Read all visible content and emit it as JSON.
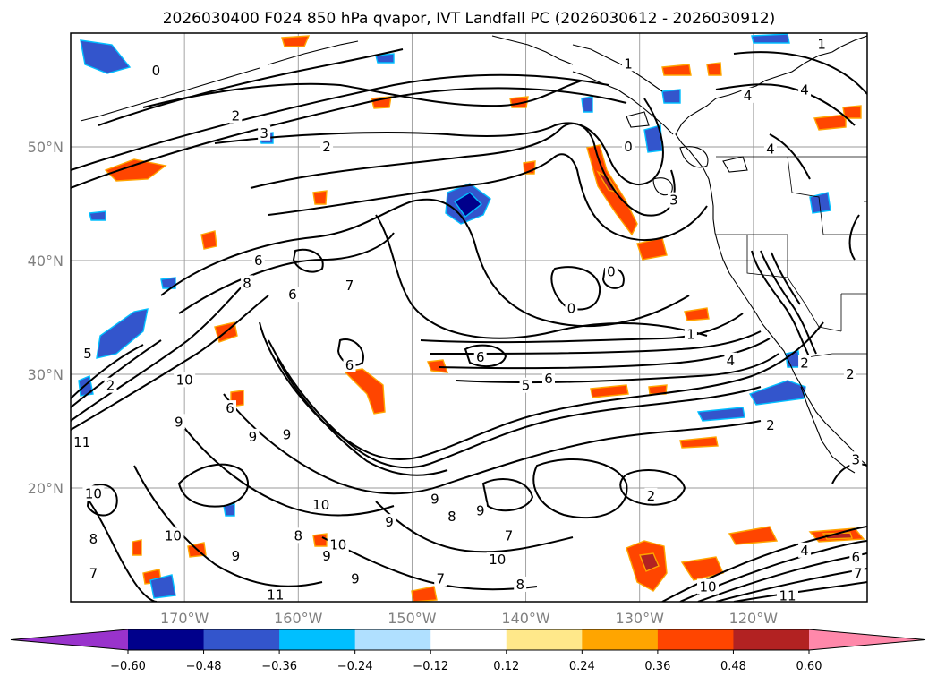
{
  "title": "2026030400 F024 850 hPa qvapor, IVT Landfall PC (2026030612 - 2026030912)",
  "map": {
    "projection": "cylindrical",
    "lon_range": [
      -180,
      -110
    ],
    "lat_range": [
      10,
      60
    ],
    "lat_ticks": [
      {
        "value": 20,
        "label": "20°N"
      },
      {
        "value": 30,
        "label": "30°N"
      },
      {
        "value": 40,
        "label": "40°N"
      },
      {
        "value": 50,
        "label": "50°N"
      }
    ],
    "lon_ticks": [
      {
        "value": -170,
        "label": "170°W"
      },
      {
        "value": -160,
        "label": "160°W"
      },
      {
        "value": -150,
        "label": "150°W"
      },
      {
        "value": -140,
        "label": "140°W"
      },
      {
        "value": -130,
        "label": "130°W"
      },
      {
        "value": -120,
        "label": "120°W"
      }
    ],
    "grid": true
  },
  "colorbar": {
    "orientation": "horizontal",
    "extend": "both",
    "ticks": [
      "−0.60",
      "−0.48",
      "−0.36",
      "−0.24",
      "−0.12",
      "0.12",
      "0.24",
      "0.36",
      "0.48",
      "0.60"
    ],
    "colors": [
      "#9933cc",
      "#00008b",
      "#3355cc",
      "#00bfff",
      "#b0e0ff",
      "#ffffff",
      "#ffe88a",
      "#ffa500",
      "#ff4500",
      "#b22222",
      "#ff88aa"
    ]
  },
  "contour_labels": [
    {
      "text": "0",
      "lon": -172.5,
      "lat": 56.7
    },
    {
      "text": "2",
      "lon": -165.5,
      "lat": 52.7
    },
    {
      "text": "3",
      "lon": -163.0,
      "lat": 51.2
    },
    {
      "text": "2",
      "lon": -157.5,
      "lat": 50.0
    },
    {
      "text": "1",
      "lon": -131.0,
      "lat": 57.3
    },
    {
      "text": "1",
      "lon": -114.0,
      "lat": 59.0
    },
    {
      "text": "0",
      "lon": -131.0,
      "lat": 50.0
    },
    {
      "text": "3",
      "lon": -127.0,
      "lat": 45.3
    },
    {
      "text": "0",
      "lon": -132.5,
      "lat": 39.0
    },
    {
      "text": "0",
      "lon": -136.0,
      "lat": 35.8
    },
    {
      "text": "6",
      "lon": -163.5,
      "lat": 40.0
    },
    {
      "text": "8",
      "lon": -164.5,
      "lat": 38.0
    },
    {
      "text": "6",
      "lon": -160.5,
      "lat": 37.0
    },
    {
      "text": "7",
      "lon": -155.5,
      "lat": 37.8
    },
    {
      "text": "5",
      "lon": -178.5,
      "lat": 31.8
    },
    {
      "text": "2",
      "lon": -176.5,
      "lat": 29.0
    },
    {
      "text": "10",
      "lon": -170.0,
      "lat": 29.5
    },
    {
      "text": "9",
      "lon": -170.5,
      "lat": 25.8
    },
    {
      "text": "6",
      "lon": -166.0,
      "lat": 27.0
    },
    {
      "text": "9",
      "lon": -164.0,
      "lat": 24.5
    },
    {
      "text": "9",
      "lon": -161.0,
      "lat": 24.7
    },
    {
      "text": "6",
      "lon": -155.5,
      "lat": 30.8
    },
    {
      "text": "6",
      "lon": -144.0,
      "lat": 31.5
    },
    {
      "text": "5",
      "lon": -140.0,
      "lat": 29.0
    },
    {
      "text": "6",
      "lon": -138.0,
      "lat": 29.6
    },
    {
      "text": "4",
      "lon": -122.0,
      "lat": 31.2
    },
    {
      "text": "1",
      "lon": -125.5,
      "lat": 33.5
    },
    {
      "text": "2",
      "lon": -115.5,
      "lat": 31.0
    },
    {
      "text": "2",
      "lon": -118.5,
      "lat": 25.5
    },
    {
      "text": "2",
      "lon": -129.0,
      "lat": 19.3
    },
    {
      "text": "11",
      "lon": -179.0,
      "lat": 24.0
    },
    {
      "text": "10",
      "lon": -178.0,
      "lat": 19.5
    },
    {
      "text": "8",
      "lon": -178.0,
      "lat": 15.5
    },
    {
      "text": "7",
      "lon": -178.0,
      "lat": 12.5
    },
    {
      "text": "10",
      "lon": -158.0,
      "lat": 18.5
    },
    {
      "text": "10",
      "lon": -171.0,
      "lat": 15.8
    },
    {
      "text": "9",
      "lon": -152.0,
      "lat": 17.0
    },
    {
      "text": "8",
      "lon": -146.5,
      "lat": 17.5
    },
    {
      "text": "9",
      "lon": -144.0,
      "lat": 18.0
    },
    {
      "text": "9",
      "lon": -148.0,
      "lat": 19.0
    },
    {
      "text": "8",
      "lon": -160.0,
      "lat": 15.8
    },
    {
      "text": "10",
      "lon": -156.5,
      "lat": 15.0
    },
    {
      "text": "9",
      "lon": -157.5,
      "lat": 14.0
    },
    {
      "text": "9",
      "lon": -165.5,
      "lat": 14.0
    },
    {
      "text": "7",
      "lon": -141.5,
      "lat": 15.8
    },
    {
      "text": "10",
      "lon": -142.5,
      "lat": 13.7
    },
    {
      "text": "7",
      "lon": -147.5,
      "lat": 12.0
    },
    {
      "text": "8",
      "lon": -140.5,
      "lat": 11.5
    },
    {
      "text": "9",
      "lon": -155.0,
      "lat": 12.0
    },
    {
      "text": "11",
      "lon": -162.0,
      "lat": 10.6
    },
    {
      "text": "6",
      "lon": -111.0,
      "lat": 13.9
    },
    {
      "text": "4",
      "lon": -115.5,
      "lat": 14.5
    },
    {
      "text": "7",
      "lon": -110.8,
      "lat": 12.5
    },
    {
      "text": "10",
      "lon": -124.0,
      "lat": 11.3
    },
    {
      "text": "11",
      "lon": -117.0,
      "lat": 10.5
    },
    {
      "text": "3",
      "lon": -111.0,
      "lat": 22.5
    },
    {
      "text": "2",
      "lon": -111.5,
      "lat": 30.0
    },
    {
      "text": "4",
      "lon": -115.5,
      "lat": 55.0
    },
    {
      "text": "4",
      "lon": -120.5,
      "lat": 54.5
    },
    {
      "text": "4",
      "lon": -118.5,
      "lat": 49.8
    }
  ]
}
